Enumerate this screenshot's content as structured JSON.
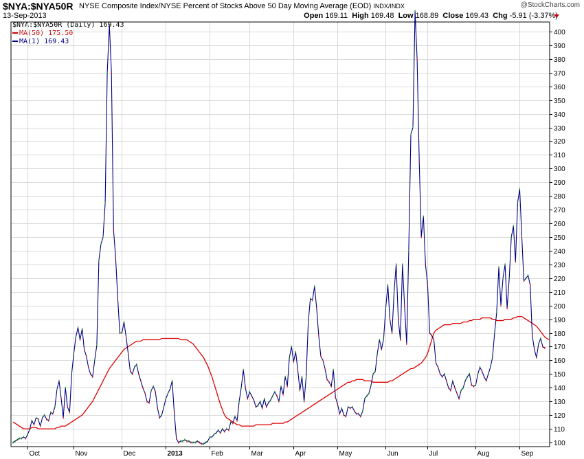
{
  "header": {
    "symbol": "$NYA:$NYA50R",
    "description": "NYSE Composite Index/NYSE Percent of Stocks Above 50 Day Moving Average (EOD)",
    "exchange": "INDX/INDX",
    "date": "13-Sep-2013",
    "watermark": "@StockCharts.com",
    "open_label": "Open",
    "open": "169.11",
    "high_label": "High",
    "high": "169.48",
    "low_label": "Low",
    "low": "168.89",
    "close_label": "Close",
    "close": "169.43",
    "chg_label": "Chg",
    "chg": "-5.91 (-3.37%)"
  },
  "legend": {
    "main": "$NYA:$NYA50R (Daily) 169.43",
    "ma50": "MA(50) 175.50",
    "ma1": "MA(1) 169.43"
  },
  "colors": {
    "price_line": "#000080",
    "ma50_line": "#dd0000",
    "up_tick": "#008000",
    "down_tick": "#cc0000",
    "grid": "#d8d8d8",
    "axis": "#000000",
    "arrow": "#cc0000"
  },
  "chart_data": {
    "type": "line",
    "grid": true,
    "ylim": [
      97,
      407
    ],
    "y_ticks": [
      100,
      110,
      120,
      130,
      140,
      150,
      160,
      170,
      180,
      190,
      200,
      210,
      220,
      230,
      240,
      250,
      260,
      270,
      280,
      290,
      300,
      310,
      320,
      330,
      340,
      350,
      360,
      370,
      380,
      390,
      400
    ],
    "x_ticks": [
      {
        "label": "Oct",
        "bold": false,
        "index": 7
      },
      {
        "label": "Nov",
        "bold": false,
        "index": 29
      },
      {
        "label": "Dec",
        "bold": false,
        "index": 52
      },
      {
        "label": "2013",
        "bold": true,
        "index": 73
      },
      {
        "label": "Feb",
        "bold": false,
        "index": 94
      },
      {
        "label": "Mar",
        "bold": false,
        "index": 113
      },
      {
        "label": "Apr",
        "bold": false,
        "index": 134
      },
      {
        "label": "May",
        "bold": false,
        "index": 155
      },
      {
        "label": "Jun",
        "bold": false,
        "index": 178
      },
      {
        "label": "Jul",
        "bold": false,
        "index": 198
      },
      {
        "label": "Aug",
        "bold": false,
        "index": 221
      },
      {
        "label": "Sep",
        "bold": false,
        "index": 242
      }
    ],
    "start_date": "2012-09-17",
    "end_date": "2013-09-13",
    "series": [
      {
        "name": "MA(1)",
        "values": [
          100,
          101,
          102,
          103,
          103,
          104,
          103,
          106,
          110,
          116,
          113,
          118,
          117,
          112,
          118,
          120,
          117,
          116,
          122,
          121,
          126,
          139,
          145,
          132,
          118,
          140,
          126,
          122,
          150,
          165,
          177,
          184,
          175,
          183,
          168,
          163,
          155,
          150,
          148,
          160,
          171,
          233,
          245,
          250,
          275,
          370,
          405,
          370,
          255,
          235,
          205,
          180,
          180,
          188,
          177,
          165,
          152,
          150,
          155,
          157,
          150,
          145,
          140,
          136,
          130,
          129,
          138,
          141,
          137,
          125,
          118,
          120,
          126,
          132,
          136,
          139,
          145,
          122,
          103,
          100,
          101,
          101,
          102,
          101,
          101,
          100,
          100,
          100,
          101,
          100,
          99,
          99,
          100,
          101,
          104,
          104,
          106,
          107,
          109,
          107,
          110,
          108,
          110,
          109,
          115,
          114,
          119,
          116,
          130,
          140,
          153,
          140,
          132,
          137,
          134,
          131,
          126,
          127,
          130,
          125,
          132,
          126,
          129,
          131,
          134,
          137,
          134,
          130,
          141,
          135,
          148,
          141,
          162,
          170,
          159,
          166,
          153,
          138,
          148,
          130,
          148,
          188,
          205,
          204,
          214,
          198,
          178,
          163,
          160,
          154,
          146,
          144,
          141,
          153,
          133,
          128,
          121,
          125,
          120,
          119,
          126,
          125,
          126,
          123,
          121,
          121,
          119,
          123,
          132,
          134,
          136,
          142,
          150,
          152,
          165,
          175,
          168,
          176,
          198,
          215,
          190,
          180,
          210,
          230,
          190,
          175,
          230,
          200,
          172,
          240,
          325,
          330,
          415,
          380,
          305,
          250,
          265,
          230,
          215,
          180,
          178,
          175,
          158,
          155,
          150,
          148,
          150,
          145,
          140,
          138,
          145,
          140,
          136,
          132,
          138,
          140,
          145,
          148,
          150,
          142,
          141,
          142,
          150,
          155,
          152,
          148,
          145,
          150,
          155,
          162,
          180,
          195,
          228,
          200,
          220,
          230,
          198,
          220,
          250,
          258,
          232,
          275,
          285,
          250,
          218,
          220,
          222,
          215,
          178,
          168,
          162,
          172,
          176,
          170,
          169
        ]
      },
      {
        "name": "MA(50)",
        "values": [
          115,
          114,
          113,
          112,
          111,
          110,
          110,
          110,
          110,
          111,
          111,
          111,
          110,
          110,
          110,
          110,
          110,
          110,
          110,
          110,
          110,
          111,
          111,
          112,
          112,
          112,
          113,
          114,
          115,
          116,
          117,
          118,
          119,
          120,
          122,
          124,
          126,
          128,
          130,
          133,
          136,
          139,
          142,
          145,
          148,
          151,
          154,
          156,
          158,
          160,
          162,
          164,
          166,
          168,
          169,
          170,
          171,
          172,
          173,
          174,
          174,
          174,
          175,
          175,
          175,
          175,
          175,
          175,
          175,
          175,
          175,
          176,
          176,
          176,
          176,
          176,
          176,
          176,
          176,
          176,
          175,
          175,
          175,
          175,
          174,
          173,
          172,
          170,
          168,
          166,
          164,
          162,
          159,
          156,
          152,
          148,
          143,
          138,
          133,
          128,
          124,
          120,
          118,
          117,
          116,
          115,
          114,
          113,
          113,
          112,
          112,
          112,
          112,
          112,
          112,
          112,
          113,
          113,
          113,
          113,
          113,
          113,
          113,
          113,
          114,
          114,
          114,
          114,
          114,
          114,
          115,
          115,
          116,
          117,
          118,
          119,
          120,
          121,
          122,
          123,
          124,
          125,
          126,
          127,
          128,
          129,
          130,
          131,
          132,
          133,
          134,
          135,
          136,
          137,
          138,
          139,
          140,
          141,
          142,
          143,
          144,
          144,
          145,
          145,
          146,
          146,
          146,
          146,
          145,
          145,
          145,
          145,
          144,
          144,
          144,
          144,
          144,
          144,
          144,
          144,
          145,
          145,
          146,
          147,
          148,
          149,
          150,
          151,
          152,
          153,
          154,
          154,
          155,
          156,
          157,
          158,
          160,
          162,
          165,
          170,
          175,
          180,
          182,
          183,
          184,
          185,
          186,
          186,
          186,
          186,
          187,
          187,
          187,
          187,
          187,
          188,
          188,
          188,
          189,
          189,
          190,
          190,
          190,
          190,
          191,
          191,
          191,
          191,
          191,
          190,
          190,
          189,
          189,
          189,
          189,
          190,
          190,
          190,
          190,
          191,
          191,
          192,
          192,
          192,
          191,
          190,
          189,
          188,
          187,
          186,
          185,
          183,
          181,
          179,
          177,
          176,
          175
        ]
      }
    ]
  }
}
